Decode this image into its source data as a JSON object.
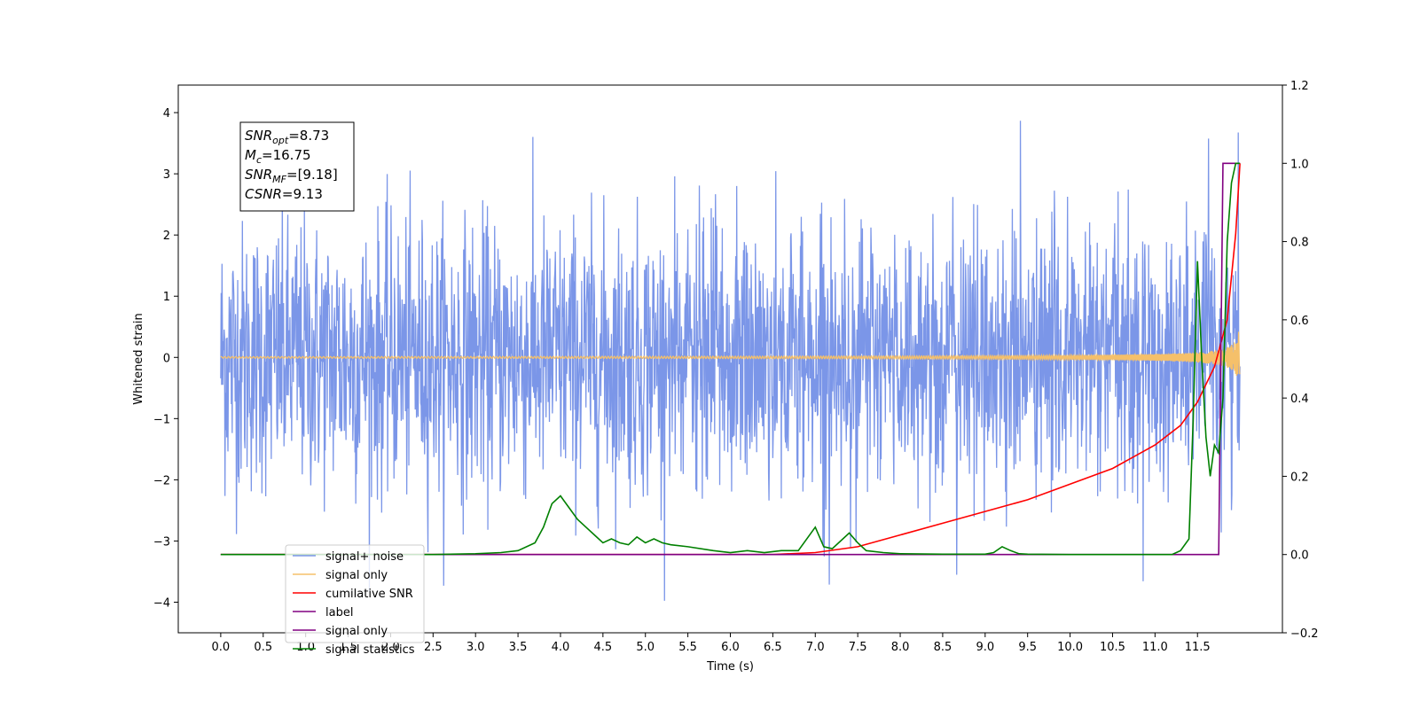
{
  "chart_data": {
    "type": "line",
    "xlabel": "Time (s)",
    "ylabel": "Whitened strain",
    "xlim": [
      -0.5,
      12.5
    ],
    "ylim_left": [
      -4.5,
      4.45
    ],
    "ylim_right": [
      -0.2,
      1.2
    ],
    "x_ticks": [
      "0.0",
      "0.5",
      "1.0",
      "1.5",
      "2.0",
      "2.5",
      "3.0",
      "3.5",
      "4.0",
      "4.5",
      "5.0",
      "5.5",
      "6.0",
      "6.5",
      "7.0",
      "7.5",
      "8.0",
      "8.5",
      "9.0",
      "9.5",
      "10.0",
      "10.5",
      "11.0",
      "11.5"
    ],
    "x_tick_values": [
      0.0,
      0.5,
      1.0,
      1.5,
      2.0,
      2.5,
      3.0,
      3.5,
      4.0,
      4.5,
      5.0,
      5.5,
      6.0,
      6.5,
      7.0,
      7.5,
      8.0,
      8.5,
      9.0,
      9.5,
      10.0,
      10.5,
      11.0,
      11.5
    ],
    "y_ticks_left": [
      "−4",
      "−3",
      "−2",
      "−1",
      "0",
      "1",
      "2",
      "3",
      "4"
    ],
    "y_tick_values_left": [
      -4,
      -3,
      -2,
      -1,
      0,
      1,
      2,
      3,
      4
    ],
    "y_ticks_right": [
      "−0.2",
      "0.0",
      "0.2",
      "0.4",
      "0.6",
      "0.8",
      "1.0",
      "1.2"
    ],
    "y_tick_values_right": [
      -0.2,
      0.0,
      0.2,
      0.4,
      0.6,
      0.8,
      1.0,
      1.2
    ],
    "grid": false,
    "legend_position": "lower-left",
    "annotation": {
      "lines": [
        {
          "main": "SNR",
          "sub": "opt",
          "rest": "=8.73"
        },
        {
          "main": "M",
          "sub": "c",
          "rest": "=16.75"
        },
        {
          "main": "SNR",
          "sub": "MF",
          "rest": "=[9.18]"
        },
        {
          "main": "CSNR",
          "sub": "",
          "rest": "=9.13"
        }
      ]
    },
    "series": [
      {
        "name": "signal+ noise",
        "color": "#7b96e8",
        "axis": "left",
        "kind": "noise",
        "x_range": [
          0.0,
          12.0
        ],
        "amplitude": 1.1,
        "peak_max": 4.05,
        "peak_min": -4.1
      },
      {
        "name": "signal only",
        "color": "#f5c06a",
        "axis": "left",
        "kind": "chirp",
        "x_range": [
          0.0,
          12.0
        ],
        "final_amplitude": 0.6
      },
      {
        "name": "cumilative SNR",
        "color": "#ff0000",
        "axis": "right",
        "x": [
          0.0,
          6.5,
          7.0,
          7.5,
          8.0,
          8.5,
          9.0,
          9.5,
          10.0,
          10.5,
          11.0,
          11.3,
          11.5,
          11.7,
          11.85,
          11.95,
          12.0
        ],
        "y": [
          0.0,
          0.0,
          0.005,
          0.02,
          0.05,
          0.08,
          0.11,
          0.14,
          0.18,
          0.22,
          0.28,
          0.33,
          0.39,
          0.48,
          0.6,
          0.82,
          1.0
        ]
      },
      {
        "name": "label",
        "color": "#800080",
        "axis": "right",
        "x": [
          0.0,
          11.75,
          11.8,
          11.8,
          11.95,
          11.95,
          12.0
        ],
        "y": [
          0.0,
          0.0,
          1.0,
          1.0,
          1.0,
          1.0,
          1.0
        ]
      },
      {
        "name": "signal only",
        "color": "#ffffff",
        "axis": "right",
        "legend_only": true
      },
      {
        "name": "signal statistics",
        "color": "#008000",
        "axis": "right",
        "x": [
          0.0,
          2.5,
          3.0,
          3.3,
          3.5,
          3.7,
          3.8,
          3.9,
          4.0,
          4.1,
          4.2,
          4.3,
          4.4,
          4.5,
          4.6,
          4.7,
          4.8,
          4.9,
          5.0,
          5.1,
          5.2,
          5.3,
          5.5,
          5.8,
          6.0,
          6.2,
          6.4,
          6.6,
          6.8,
          7.0,
          7.1,
          7.2,
          7.4,
          7.5,
          7.6,
          7.8,
          8.0,
          8.5,
          9.0,
          9.1,
          9.2,
          9.3,
          9.4,
          9.5,
          10.0,
          10.5,
          11.0,
          11.2,
          11.3,
          11.4,
          11.45,
          11.5,
          11.55,
          11.6,
          11.65,
          11.7,
          11.75,
          11.8,
          11.85,
          11.9,
          11.95,
          12.0
        ],
        "y": [
          0.0,
          0.0,
          0.002,
          0.005,
          0.01,
          0.03,
          0.07,
          0.13,
          0.15,
          0.12,
          0.09,
          0.07,
          0.05,
          0.03,
          0.04,
          0.03,
          0.025,
          0.045,
          0.03,
          0.04,
          0.03,
          0.025,
          0.02,
          0.01,
          0.005,
          0.01,
          0.005,
          0.01,
          0.01,
          0.07,
          0.02,
          0.015,
          0.055,
          0.03,
          0.01,
          0.005,
          0.002,
          0.001,
          0.001,
          0.005,
          0.02,
          0.01,
          0.002,
          0.001,
          0.0,
          0.0,
          0.0,
          0.0,
          0.01,
          0.04,
          0.35,
          0.75,
          0.5,
          0.3,
          0.2,
          0.28,
          0.26,
          0.4,
          0.8,
          0.95,
          1.0,
          1.0
        ]
      }
    ]
  }
}
